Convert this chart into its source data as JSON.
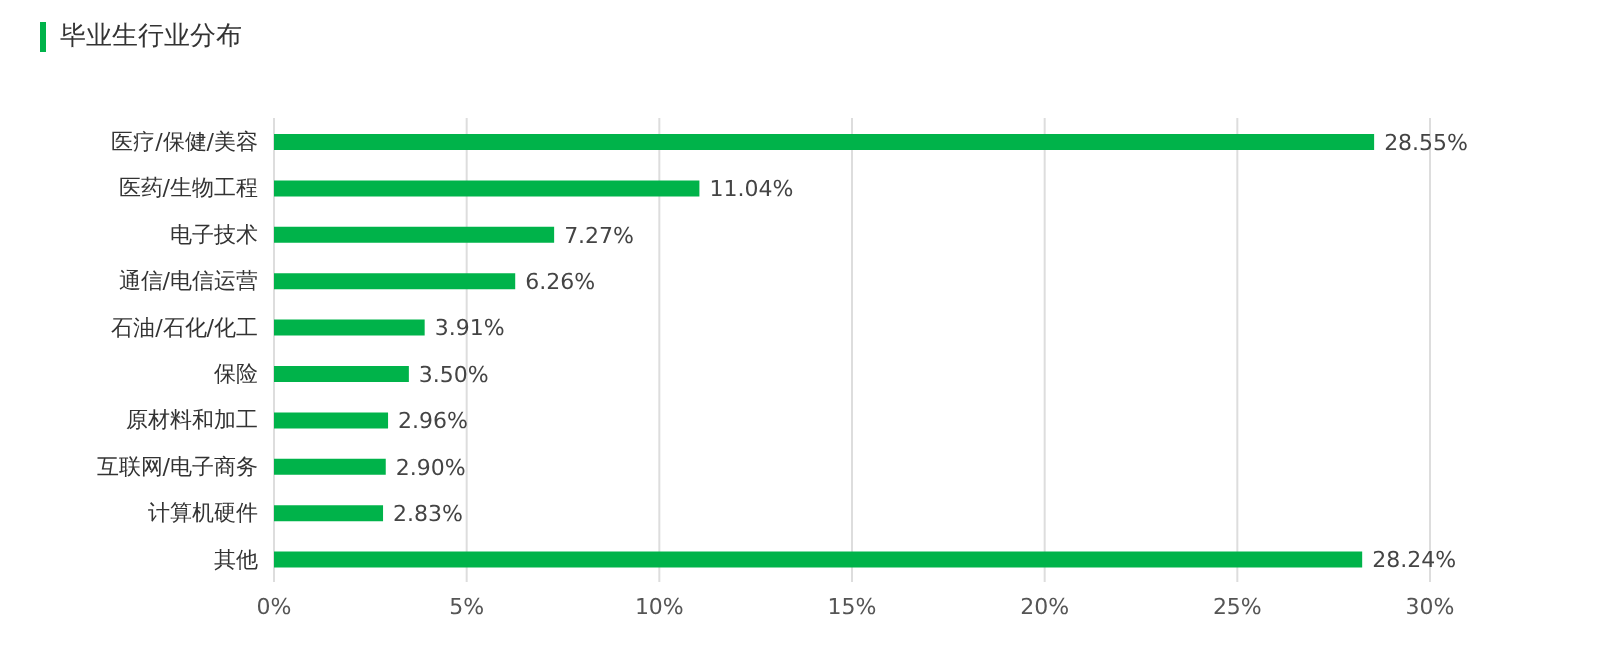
{
  "chart_data": {
    "type": "bar",
    "orientation": "horizontal",
    "title": "毕业生行业分布",
    "categories": [
      "医疗/保健/美容",
      "医药/生物工程",
      "电子技术",
      "通信/电信运营",
      "石油/石化/化工",
      "保险",
      "原材料和加工",
      "互联网/电子商务",
      "计算机硬件",
      "其他"
    ],
    "values": [
      28.55,
      11.04,
      7.27,
      6.26,
      3.91,
      3.5,
      2.96,
      2.9,
      2.83,
      28.24
    ],
    "value_labels": [
      "28.55%",
      "11.04%",
      "7.27%",
      "6.26%",
      "3.91%",
      "3.50%",
      "2.96%",
      "2.90%",
      "2.83%",
      "28.24%"
    ],
    "color": "#00b34a",
    "xlim": [
      0,
      30
    ],
    "xticks": [
      {
        "value": 0,
        "label": "0%"
      },
      {
        "value": 5,
        "label": "5%"
      },
      {
        "value": 10,
        "label": "10%"
      },
      {
        "value": 15,
        "label": "15%"
      },
      {
        "value": 20,
        "label": "20%"
      },
      {
        "value": 25,
        "label": "25%"
      },
      {
        "value": 30,
        "label": "30%"
      }
    ],
    "grid": "x"
  }
}
